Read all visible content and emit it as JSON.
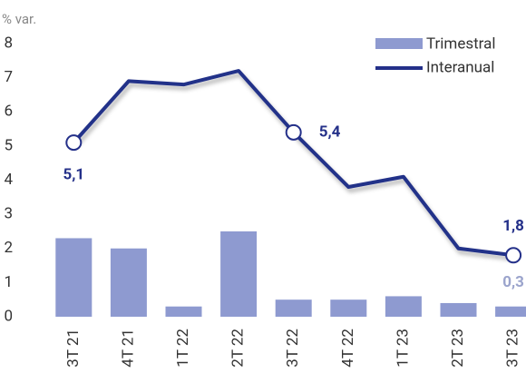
{
  "chart_data": {
    "type": "bar-line",
    "y_axis_label": "% var.",
    "categories": [
      "3T 21",
      "4T 21",
      "1T 22",
      "2T 22",
      "3T 22",
      "4T 22",
      "1T 23",
      "2T 23",
      "3T 23"
    ],
    "series": [
      {
        "name": "Trimestral",
        "type": "bar",
        "color": "#8e9ad0",
        "values": [
          2.3,
          2.0,
          0.3,
          2.5,
          0.5,
          0.5,
          0.6,
          0.4,
          0.3
        ],
        "value_labels": [
          null,
          null,
          null,
          null,
          null,
          null,
          null,
          null,
          "0,3"
        ]
      },
      {
        "name": "Interanual",
        "type": "line",
        "color": "#243089",
        "values": [
          5.1,
          6.9,
          6.8,
          7.2,
          5.4,
          3.8,
          4.1,
          2.0,
          1.8
        ],
        "value_labels": [
          "5,1",
          null,
          null,
          null,
          "5,4",
          null,
          null,
          null,
          "1,8"
        ]
      }
    ],
    "ylim": [
      0,
      8
    ],
    "yticks": [
      0,
      1,
      2,
      3,
      4,
      5,
      6,
      7,
      8
    ],
    "grid": false
  }
}
